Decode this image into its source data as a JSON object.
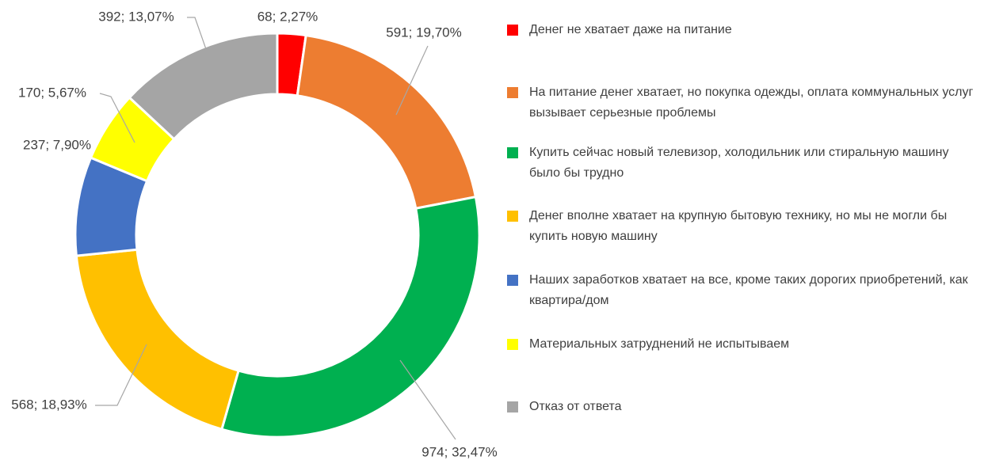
{
  "chart_data": {
    "type": "donut",
    "categories": [
      "Денег не хватает даже на питание",
      "На питание денег хватает, но покупка одежды, оплата коммунальных услуг вызывает серьезные проблемы",
      "Купить сейчас новый телевизор, холодильник или стиральную машину было бы трудно",
      "Денег вполне хватает на крупную бытовую технику, но мы не могли бы купить новую машину",
      "Наших заработков хватает на все, кроме таких дорогих приобретений, как квартира/дом",
      "Материальных затруднений не испытываем",
      "Отказ от ответа"
    ],
    "values": [
      68,
      591,
      974,
      568,
      237,
      170,
      392
    ],
    "value_labels": [
      "68; 2,27%",
      "591; 19,70%",
      "974; 32,47%",
      "568; 18,93%",
      "237; 7,90%",
      "170; 5,67%",
      "392; 13,07%"
    ],
    "colors": [
      "#ff0000",
      "#ed7d31",
      "#00b050",
      "#ffc000",
      "#4472c4",
      "#ffff00",
      "#a5a5a5"
    ],
    "legend": "right"
  }
}
